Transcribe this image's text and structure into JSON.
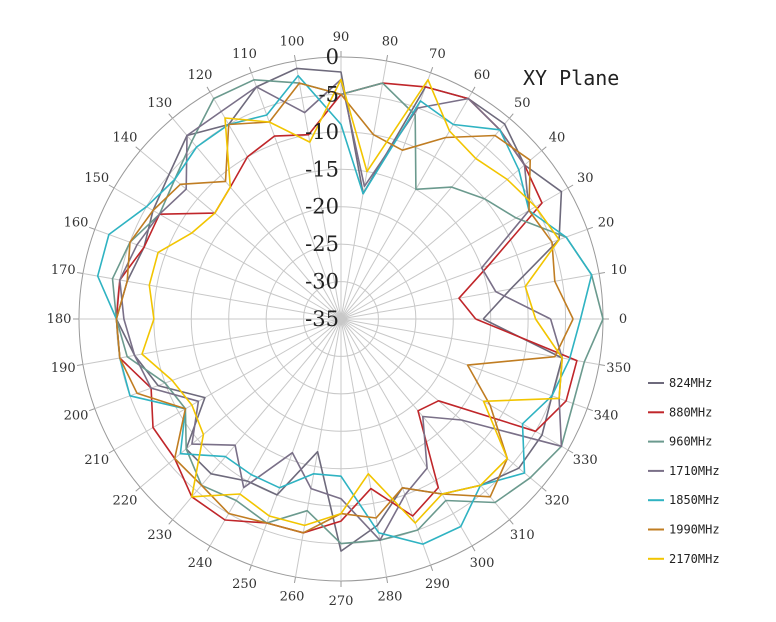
{
  "chart_data": {
    "type": "polar-line",
    "title": "XY Plane",
    "angle_ticks_deg": [
      0,
      10,
      20,
      30,
      40,
      50,
      60,
      70,
      80,
      90,
      100,
      110,
      120,
      130,
      140,
      150,
      160,
      170,
      180,
      190,
      200,
      210,
      220,
      230,
      240,
      250,
      260,
      270,
      280,
      290,
      300,
      310,
      320,
      330,
      340,
      350
    ],
    "r_ticks": [
      0,
      -5,
      -10,
      -15,
      -20,
      -25,
      -30,
      -35
    ],
    "rlim": [
      -35,
      0
    ],
    "grid": true,
    "legend_position": "right",
    "theta_deg": [
      0,
      10,
      20,
      30,
      40,
      50,
      60,
      70,
      80,
      90,
      100,
      110,
      120,
      130,
      140,
      150,
      160,
      170,
      180,
      190,
      200,
      210,
      220,
      230,
      240,
      250,
      260,
      270,
      280,
      290,
      300,
      310,
      320,
      330,
      340,
      350
    ],
    "series": [
      {
        "name": "824MHz",
        "color": "#6e6a7c",
        "values": [
          -16,
          -12,
          -4,
          -1,
          -3,
          -1,
          -1,
          -2,
          -18,
          -2,
          -1,
          -2,
          -5,
          -3,
          -5,
          -6,
          -7,
          -6,
          -5,
          -7,
          -9,
          -14,
          -8,
          -8,
          -10,
          -10,
          -17,
          -4,
          -7,
          -11,
          -8,
          -6,
          -4,
          -4,
          -5,
          -5
        ]
      },
      {
        "name": "880MHz",
        "color": "#c0262a",
        "values": [
          -17,
          -19,
          -14,
          -4,
          -3,
          -2,
          -1,
          -2,
          -3,
          -5,
          -10,
          -9,
          -10,
          -12,
          -13,
          -7,
          -7,
          -5,
          -5,
          -5,
          -8,
          -6,
          -6,
          -4,
          -4,
          -6,
          -6,
          -8,
          -12,
          -7,
          -9,
          -19,
          -18,
          -5,
          -3,
          -3
        ]
      },
      {
        "name": "960MHz",
        "color": "#6b9a8e",
        "values": [
          0,
          -1,
          -3,
          -8,
          -10,
          -12,
          -15,
          -6,
          -3,
          -5,
          -3,
          -1,
          -1,
          -4,
          -6,
          -7,
          -5,
          -4,
          -5,
          -6,
          -10,
          -11,
          -8,
          -6,
          -7,
          -6,
          -9,
          -5,
          -5,
          -5,
          -7,
          -3,
          -2,
          -1,
          -2,
          -2
        ]
      },
      {
        "name": "1710MHz",
        "color": "#7a7088",
        "values": [
          -7,
          -14,
          -15,
          -6,
          -3,
          -2,
          -1,
          -5,
          -17,
          -3,
          -7,
          -2,
          -3,
          -3,
          -8,
          -7,
          -6,
          -5,
          -6,
          -7,
          -8,
          -13,
          -9,
          -13,
          -9,
          -16,
          -12,
          -11,
          -5,
          -10,
          -12,
          -18,
          -14,
          -1,
          -4,
          -5
        ]
      },
      {
        "name": "1850MHz",
        "color": "#2fb3c2",
        "values": [
          -3,
          -1,
          -3,
          -6,
          -4,
          -2,
          -5,
          -4,
          -18,
          -9,
          -2,
          -6,
          -5,
          -5,
          -6,
          -5,
          -2,
          -2,
          -5,
          -5,
          -5,
          -11,
          -7,
          -11,
          -11,
          -11,
          -14,
          -14,
          -6,
          -3,
          -3,
          -6,
          -3,
          -7,
          -5,
          -4
        ]
      },
      {
        "name": "1990MHz",
        "color": "#c07d22",
        "values": [
          -4,
          -6,
          -5,
          -6,
          -2,
          -3,
          -7,
          -11,
          -10,
          -5,
          -3,
          -7,
          -5,
          -11,
          -7,
          -6,
          -5,
          -6,
          -5,
          -5,
          -6,
          -11,
          -6,
          -6,
          -5,
          -6,
          -6,
          -9,
          -8,
          -11,
          -8,
          -4,
          -6,
          -12,
          -17,
          -6
        ]
      },
      {
        "name": "2170MHz",
        "color": "#f2c500",
        "values": [
          -9,
          -10,
          -4,
          -5,
          -6,
          -7,
          -6,
          -1,
          -15,
          -3,
          -11,
          -7,
          -4,
          -12,
          -13,
          -12,
          -9,
          -9,
          -10,
          -8,
          -11,
          -12,
          -11,
          -4,
          -8,
          -7,
          -7,
          -9,
          -14,
          -6,
          -8,
          -6,
          -6,
          -13,
          -4,
          -5
        ]
      }
    ]
  }
}
